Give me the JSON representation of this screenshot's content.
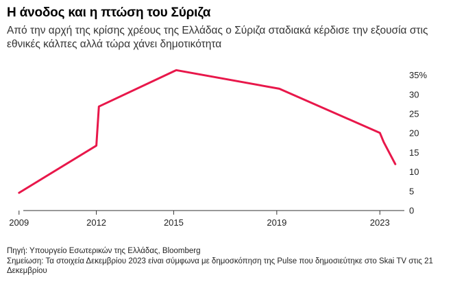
{
  "header": {
    "title": "Η άνοδος και η πτώση του Σύριζα",
    "subtitle": "Από την αρχή της κρίσης χρέους της Ελλάδας ο Σύριζα σταδιακά κέρδισε την εξουσία στις εθνικές κάλπες αλλά τώρα χάνει δημοτικότητα"
  },
  "footer": {
    "source": "Πηγή: Υπουργείο Εσωτερικών της Ελλάδας, Bloomberg",
    "note": "Σημείωση: Τα στοιχεία Δεκεμβρίου 2023 είναι σύμφωνα με δημοσκόπηση της Pulse που δημοσιεύτηκε στο Skai TV στις 21 Δεκεμβρίου"
  },
  "chart_data": {
    "type": "line",
    "title": "Η άνοδος και η πτώση του Σύριζα",
    "xlabel": "",
    "ylabel": "",
    "xlim": [
      2008.9,
      2023.95
    ],
    "ylim": [
      0,
      36
    ],
    "x_ticks": [
      2009,
      2012,
      2015,
      2019,
      2023
    ],
    "x_tick_labels": [
      "2009",
      "2012",
      "2015",
      "2019",
      "2023"
    ],
    "y_ticks": [
      0,
      5,
      10,
      15,
      20,
      25,
      30,
      35
    ],
    "y_tick_labels": [
      "0",
      "5",
      "10",
      "15",
      "20",
      "25",
      "30",
      "35%"
    ],
    "y_axis_side": "right",
    "grid": false,
    "color": "#e8174a",
    "series": [
      {
        "x": [
          2009.0,
          2012.0,
          2012.1,
          2015.1,
          2019.1,
          2023.0,
          2023.15,
          2023.6
        ],
        "values": [
          4.6,
          16.8,
          26.9,
          36.3,
          31.5,
          20.1,
          17.7,
          12.0
        ]
      }
    ]
  }
}
